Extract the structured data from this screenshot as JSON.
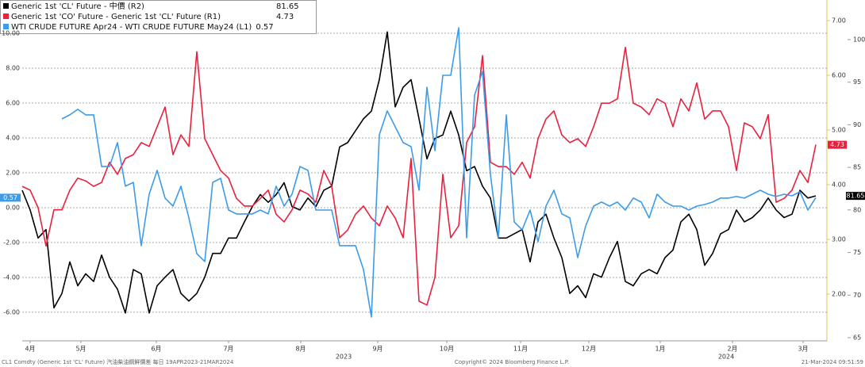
{
  "chart_data": {
    "type": "line",
    "xlim": [
      0,
      100
    ],
    "xticks": [
      {
        "value": 1,
        "label": "4月"
      },
      {
        "value": 7.4,
        "label": "5月"
      },
      {
        "value": 16.9,
        "label": "6月"
      },
      {
        "value": 26,
        "label": "7月"
      },
      {
        "value": 35.1,
        "label": "8月"
      },
      {
        "value": 44.8,
        "label": "9月"
      },
      {
        "value": 53.5,
        "label": "10月"
      },
      {
        "value": 62.8,
        "label": "11月"
      },
      {
        "value": 71.4,
        "label": "12月"
      },
      {
        "value": 80.4,
        "label": "1月"
      },
      {
        "value": 89.5,
        "label": "2月"
      },
      {
        "value": 98.4,
        "label": "3月"
      }
    ],
    "year_labels": [
      {
        "value": 40.5,
        "label": "2023"
      },
      {
        "value": 88.7,
        "label": "2024"
      }
    ],
    "ylim": [
      -7.64,
      11.91
    ],
    "yticks": [
      {
        "value": -6,
        "label": "-6.00"
      },
      {
        "value": -4,
        "label": "-4.00"
      },
      {
        "value": -2,
        "label": "-2.00"
      },
      {
        "value": 0,
        "label": "0.00"
      },
      {
        "value": 2,
        "label": "2.00"
      },
      {
        "value": 4,
        "label": "4.00"
      },
      {
        "value": 6,
        "label": "6.00"
      },
      {
        "value": 8,
        "label": "8.00"
      },
      {
        "value": 10,
        "label": "10.00"
      }
    ],
    "y2lim": [
      1.145,
      7.377
    ],
    "y2ticks": [
      {
        "value": 2,
        "label": "2.00"
      },
      {
        "value": 3,
        "label": "3.00"
      },
      {
        "value": 4,
        "label": "4.00"
      },
      {
        "value": 5,
        "label": "5.00"
      },
      {
        "value": 6,
        "label": "6.00"
      },
      {
        "value": 7,
        "label": "7.00"
      }
    ],
    "y3lim": [
      64.63,
      104.65
    ],
    "y3ticks": [
      65,
      70,
      75,
      80,
      85,
      90,
      95,
      100
    ],
    "grid": true,
    "series": [
      {
        "name": "Generic 1st 'CL' Future - 中價 (R2)",
        "color": "#000000",
        "axis": "y3",
        "values": [
          82.3,
          80.0,
          76.7,
          77.7,
          68.5,
          70.2,
          73.9,
          71.1,
          72.5,
          71.6,
          74.7,
          72.1,
          70.7,
          67.9,
          73.0,
          72.5,
          67.9,
          71.1,
          72.1,
          73.0,
          70.2,
          69.3,
          70.2,
          72.1,
          74.9,
          74.9,
          76.7,
          76.7,
          78.6,
          80.4,
          81.8,
          80.9,
          81.8,
          83.2,
          80.4,
          80.0,
          81.4,
          80.4,
          82.3,
          82.8,
          87.4,
          87.9,
          89.3,
          90.7,
          91.6,
          95.3,
          100.9,
          92.1,
          94.4,
          95.3,
          90.7,
          86.0,
          88.4,
          88.8,
          91.6,
          88.8,
          84.6,
          85.1,
          82.8,
          81.4,
          76.7,
          76.7,
          77.2,
          77.7,
          73.9,
          78.6,
          79.5,
          76.7,
          74.4,
          70.2,
          71.1,
          69.7,
          72.5,
          72.1,
          74.4,
          76.3,
          71.6,
          71.1,
          72.5,
          73.0,
          72.5,
          74.4,
          75.3,
          78.6,
          79.5,
          77.7,
          73.5,
          74.9,
          77.2,
          77.7,
          80.0,
          78.6,
          79.1,
          80.0,
          81.4,
          80.0,
          79.1,
          79.5,
          82.3,
          81.4,
          81.65
        ]
      },
      {
        "name": "Generic 1st 'CO' Future - Generic 1st 'CL' Future (R1)",
        "color": "#e8213f",
        "axis": "y2",
        "values": [
          3.97,
          3.9,
          3.58,
          2.88,
          3.54,
          3.54,
          3.9,
          4.12,
          4.07,
          3.97,
          4.04,
          4.41,
          4.19,
          4.48,
          4.55,
          4.77,
          4.7,
          5.06,
          5.42,
          4.55,
          4.91,
          4.7,
          6.43,
          4.84,
          4.55,
          4.26,
          4.12,
          3.75,
          3.61,
          3.61,
          3.75,
          3.9,
          3.46,
          3.32,
          3.54,
          3.9,
          3.83,
          3.68,
          4.26,
          3.97,
          3.03,
          3.17,
          3.46,
          3.61,
          3.39,
          3.25,
          3.61,
          3.39,
          3.03,
          4.48,
          1.87,
          1.8,
          2.3,
          4.19,
          3.03,
          3.25,
          4.77,
          5.06,
          6.36,
          4.41,
          4.33,
          4.33,
          4.19,
          4.41,
          4.12,
          4.84,
          5.2,
          5.35,
          4.91,
          4.77,
          4.84,
          4.7,
          5.06,
          5.49,
          5.49,
          5.57,
          6.51,
          5.49,
          5.42,
          5.28,
          5.57,
          5.49,
          5.06,
          5.57,
          5.35,
          5.86,
          5.2,
          5.35,
          5.35,
          5.06,
          4.26,
          5.13,
          5.06,
          4.84,
          5.28,
          3.68,
          3.75,
          3.9,
          4.26,
          4.04,
          4.73
        ]
      },
      {
        "name": "WTI CRUDE FUTURE Apr24 - WTI CRUDE FUTURE May24 (L1)",
        "color": "#3d9be9",
        "axis": "y",
        "values": [
          null,
          null,
          null,
          null,
          null,
          5.09,
          5.32,
          5.64,
          5.32,
          5.32,
          2.36,
          2.36,
          3.73,
          1.23,
          1.45,
          -2.18,
          0.77,
          2.14,
          0.55,
          0.09,
          1.23,
          -0.59,
          -2.64,
          -3.09,
          1.45,
          1.68,
          -0.14,
          -0.36,
          -0.36,
          -0.36,
          -0.14,
          -0.36,
          1.23,
          0.09,
          0.77,
          2.36,
          2.14,
          -0.14,
          -0.14,
          -0.14,
          -2.18,
          -2.18,
          -2.18,
          -3.55,
          -6.27,
          4.18,
          5.55,
          4.64,
          3.73,
          3.5,
          1.0,
          6.91,
          3.27,
          7.59,
          7.59,
          10.32,
          -1.73,
          6.45,
          7.82,
          1.91,
          -1.73,
          5.32,
          -0.82,
          -1.27,
          -0.14,
          -1.95,
          0.09,
          1.0,
          -0.36,
          -0.59,
          -2.86,
          -1.05,
          0.09,
          0.32,
          0.09,
          0.32,
          -0.14,
          0.55,
          0.32,
          -0.59,
          0.77,
          0.32,
          0.09,
          0.09,
          -0.14,
          0.09,
          0.18,
          0.32,
          0.55,
          0.55,
          0.64,
          0.55,
          0.77,
          1.0,
          0.77,
          0.64,
          0.77,
          0.68,
          0.91,
          -0.14,
          0.57
        ]
      }
    ],
    "footer": {
      "left": "CL1 Comdty (Generic 1st 'CL' Future) 汽油柴油鋼鮮價差   每日 19APR2023-21MAR2024",
      "center": "Copyright© 2024 Bloomberg Finance L.P.",
      "right": "21-Mar-2024 09:51:59"
    }
  }
}
